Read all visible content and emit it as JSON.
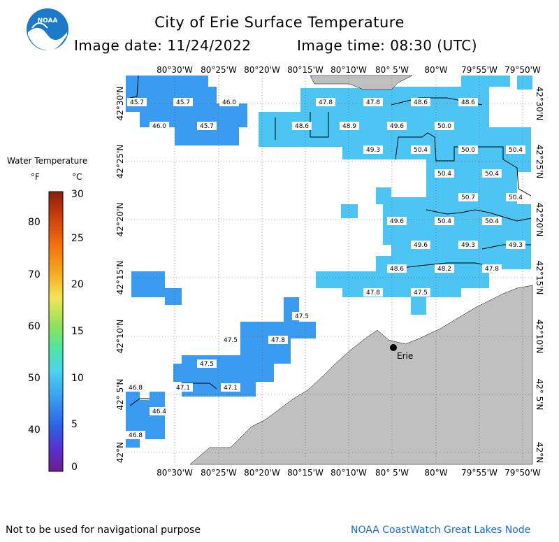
{
  "header": {
    "logo_text": "NOAA",
    "title": "City of Erie Surface Temperature",
    "image_date_label": "Image date: 11/24/2022",
    "image_time_label": "Image time: 08:30 (UTC)"
  },
  "legend": {
    "title": "Water Temperature",
    "unit_f": "°F",
    "unit_c": "°C",
    "f_ticks": [
      "80",
      "70",
      "60",
      "50",
      "40"
    ],
    "c_ticks": [
      "30",
      "25",
      "20",
      "15",
      "10",
      "5",
      "0"
    ]
  },
  "map": {
    "lon_labels": [
      "80°30'W",
      "80°25'W",
      "80°20'W",
      "80°15'W",
      "80°10'W",
      "80° 5'W",
      "80°W",
      "79°55'W",
      "79°50'W"
    ],
    "lat_labels": [
      "42°30'N",
      "42°25'N",
      "42°20'N",
      "42°15'N",
      "42°10'N",
      "42° 5'N",
      "42°N"
    ],
    "city_label": "Erie",
    "temperatures": [
      {
        "v": "45.7"
      },
      {
        "v": "45.7"
      },
      {
        "v": "46.0"
      },
      {
        "v": "47.8"
      },
      {
        "v": "47.8"
      },
      {
        "v": "48.6"
      },
      {
        "v": "48.6"
      },
      {
        "v": "46.0"
      },
      {
        "v": "45.7"
      },
      {
        "v": "48.6"
      },
      {
        "v": "48.9"
      },
      {
        "v": "49.6"
      },
      {
        "v": "50.0"
      },
      {
        "v": "49.3"
      },
      {
        "v": "50.4"
      },
      {
        "v": "50.0"
      },
      {
        "v": "50.4"
      },
      {
        "v": "50.4"
      },
      {
        "v": "50.4"
      },
      {
        "v": "50.7"
      },
      {
        "v": "50.4"
      },
      {
        "v": "49.6"
      },
      {
        "v": "50.4"
      },
      {
        "v": "50.4"
      },
      {
        "v": "49.6"
      },
      {
        "v": "49.3"
      },
      {
        "v": "49.3"
      },
      {
        "v": "48.6"
      },
      {
        "v": "48.2"
      },
      {
        "v": "47.8"
      },
      {
        "v": "47.8"
      },
      {
        "v": "47.5"
      },
      {
        "v": "47.5"
      },
      {
        "v": "47.5"
      },
      {
        "v": "47.8"
      },
      {
        "v": "47.5"
      },
      {
        "v": "46.8"
      },
      {
        "v": "47.1"
      },
      {
        "v": "47.1"
      },
      {
        "v": "46.4"
      },
      {
        "v": "46.8"
      }
    ]
  },
  "footer": {
    "disclaimer": "Not to be used for navigational purpose",
    "credit": "NOAA CoastWatch Great Lakes Node"
  },
  "colors": {
    "water_light": "#4cc4f4",
    "water_mid": "#3a9cf0",
    "land": "#c0c0c0",
    "credit_text": "#1a6ec9"
  }
}
